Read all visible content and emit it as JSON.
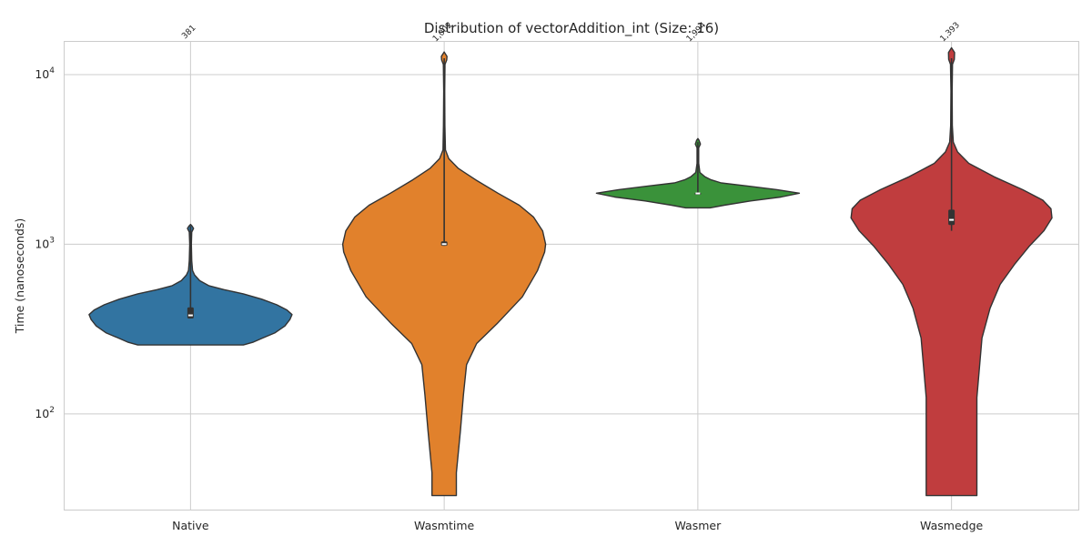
{
  "chart_data": {
    "type": "violin",
    "title": "Distribution of vectorAddition_int (Size: 16)",
    "xlabel": "",
    "ylabel": "Time (nanoseconds)",
    "yscale": "log",
    "ylim": [
      33,
      19500
    ],
    "yticks": [
      {
        "value": 100,
        "base": "10",
        "exp": "2"
      },
      {
        "value": 1000,
        "base": "10",
        "exp": "3"
      },
      {
        "value": 10000,
        "base": "10",
        "exp": "4"
      }
    ],
    "grid": true,
    "categories": [
      "Native",
      "Wasmtime",
      "Wasmer",
      "Wasmedge"
    ],
    "annotations": [
      "381",
      "1,002",
      "1,994",
      "1,393"
    ],
    "series": [
      {
        "category": "Native",
        "color": "#3274a1",
        "median": 381,
        "q1": 365,
        "q3": 425,
        "whisker_low": 365,
        "whisker_high": 1280,
        "profile": [
          [
            255,
            0.52
          ],
          [
            265,
            0.62
          ],
          [
            280,
            0.71
          ],
          [
            300,
            0.83
          ],
          [
            330,
            0.93
          ],
          [
            360,
            0.98
          ],
          [
            385,
            1.0
          ],
          [
            410,
            0.95
          ],
          [
            440,
            0.85
          ],
          [
            475,
            0.7
          ],
          [
            510,
            0.52
          ],
          [
            540,
            0.33
          ],
          [
            570,
            0.18
          ],
          [
            610,
            0.09
          ],
          [
            660,
            0.04
          ],
          [
            700,
            0.02
          ],
          [
            800,
            0.012
          ],
          [
            1000,
            0.008
          ],
          [
            1180,
            0.012
          ],
          [
            1240,
            0.03
          ],
          [
            1280,
            0.015
          ],
          [
            1310,
            0.0
          ]
        ]
      },
      {
        "category": "Wasmtime",
        "color": "#e1812c",
        "median": 1002,
        "q1": 980,
        "q3": 1040,
        "whisker_low": 980,
        "whisker_high": 12500,
        "profile": [
          [
            33,
            0.12
          ],
          [
            45,
            0.12
          ],
          [
            80,
            0.16
          ],
          [
            130,
            0.19
          ],
          [
            195,
            0.22
          ],
          [
            260,
            0.32
          ],
          [
            340,
            0.52
          ],
          [
            490,
            0.77
          ],
          [
            700,
            0.92
          ],
          [
            900,
            0.99
          ],
          [
            1000,
            1.0
          ],
          [
            1200,
            0.97
          ],
          [
            1450,
            0.88
          ],
          [
            1700,
            0.74
          ],
          [
            2000,
            0.53
          ],
          [
            2400,
            0.31
          ],
          [
            2800,
            0.14
          ],
          [
            3200,
            0.045
          ],
          [
            3600,
            0.012
          ],
          [
            5000,
            0.007
          ],
          [
            8000,
            0.005
          ],
          [
            11500,
            0.008
          ],
          [
            12200,
            0.025
          ],
          [
            12800,
            0.028
          ],
          [
            13600,
            0.0
          ]
        ]
      },
      {
        "category": "Wasmer",
        "color": "#3a923a",
        "median": 1994,
        "q1": 1985,
        "q3": 2010,
        "whisker_low": 1985,
        "whisker_high": 4000,
        "profile": [
          [
            1640,
            0.12
          ],
          [
            1700,
            0.26
          ],
          [
            1800,
            0.52
          ],
          [
            1900,
            0.82
          ],
          [
            2000,
            1.0
          ],
          [
            2100,
            0.78
          ],
          [
            2200,
            0.5
          ],
          [
            2300,
            0.23
          ],
          [
            2400,
            0.13
          ],
          [
            2500,
            0.07
          ],
          [
            2650,
            0.02
          ],
          [
            3000,
            0.008
          ],
          [
            3700,
            0.008
          ],
          [
            3900,
            0.025
          ],
          [
            4100,
            0.012
          ],
          [
            4200,
            0.0
          ]
        ]
      },
      {
        "category": "Wasmedge",
        "color": "#c03d3e",
        "median": 1393,
        "q1": 1300,
        "q3": 1600,
        "whisker_low": 1200,
        "whisker_high": 12500,
        "profile": [
          [
            33,
            0.25
          ],
          [
            125,
            0.25
          ],
          [
            280,
            0.3
          ],
          [
            420,
            0.38
          ],
          [
            580,
            0.48
          ],
          [
            760,
            0.62
          ],
          [
            980,
            0.77
          ],
          [
            1200,
            0.91
          ],
          [
            1430,
            0.99
          ],
          [
            1620,
            0.98
          ],
          [
            1820,
            0.9
          ],
          [
            2100,
            0.7
          ],
          [
            2500,
            0.42
          ],
          [
            3000,
            0.17
          ],
          [
            3500,
            0.06
          ],
          [
            4000,
            0.018
          ],
          [
            5000,
            0.008
          ],
          [
            8000,
            0.006
          ],
          [
            11500,
            0.01
          ],
          [
            12300,
            0.028
          ],
          [
            13500,
            0.03
          ],
          [
            14400,
            0.0
          ]
        ]
      }
    ]
  }
}
